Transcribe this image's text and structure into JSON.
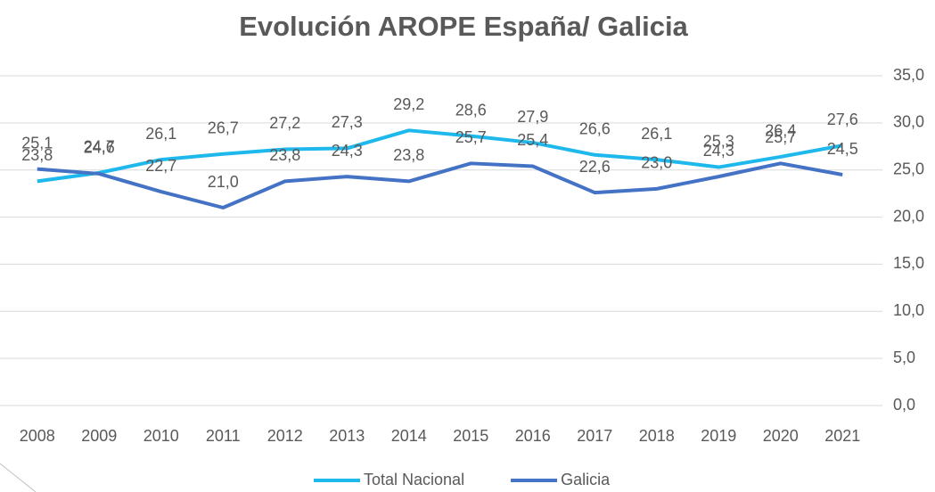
{
  "chart_data": {
    "type": "line",
    "title": "Evolución AROPE España/ Galicia",
    "categories": [
      "2008",
      "2009",
      "2010",
      "2011",
      "2012",
      "2013",
      "2014",
      "2015",
      "2016",
      "2017",
      "2018",
      "2019",
      "2020",
      "2021"
    ],
    "series": [
      {
        "name": "Total Nacional",
        "color": "#1fb8ec",
        "values": [
          23.8,
          24.7,
          26.1,
          26.7,
          27.2,
          27.3,
          29.2,
          28.6,
          27.9,
          26.6,
          26.1,
          25.3,
          26.4,
          27.6
        ],
        "value_labels": [
          "23,8",
          "24,7",
          "26,1",
          "26,7",
          "27,2",
          "27,3",
          "29,2",
          "28,6",
          "27,9",
          "26,6",
          "26,1",
          "25,3",
          "26,4",
          "27,6"
        ]
      },
      {
        "name": "Galicia",
        "color": "#4472c4",
        "values": [
          25.1,
          24.6,
          22.7,
          21.0,
          23.8,
          24.3,
          23.8,
          25.7,
          25.4,
          22.6,
          23.0,
          24.3,
          25.7,
          24.5
        ],
        "value_labels": [
          "25,1",
          "24,6",
          "22,7",
          "21,0",
          "23,8",
          "24,3",
          "23,8",
          "25,7",
          "25,4",
          "22,6",
          "23,0",
          "24,3",
          "25,7",
          "24,5"
        ]
      }
    ],
    "ylim": [
      0,
      35
    ],
    "yticks": [
      {
        "value": 0,
        "label": "0,0"
      },
      {
        "value": 5,
        "label": "5,0"
      },
      {
        "value": 10,
        "label": "10,0"
      },
      {
        "value": 15,
        "label": "15,0"
      },
      {
        "value": 20,
        "label": "20,0"
      },
      {
        "value": 25,
        "label": "25,0"
      },
      {
        "value": 30,
        "label": "30,0"
      },
      {
        "value": 35,
        "label": "35,0"
      }
    ],
    "grid": true,
    "y_axis_side": "right",
    "legend": "bottom"
  }
}
